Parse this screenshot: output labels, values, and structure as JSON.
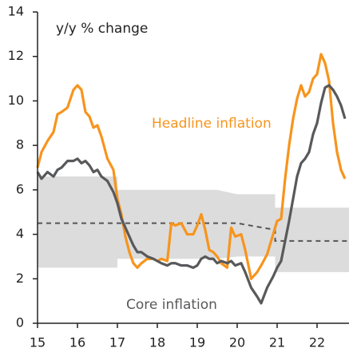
{
  "chart_data": {
    "type": "line",
    "ylabel": "y/y % change",
    "x": [
      2015.0,
      2015.1,
      2015.25,
      2015.4,
      2015.5,
      2015.6,
      2015.75,
      2015.9,
      2016.0,
      2016.1,
      2016.2,
      2016.3,
      2016.4,
      2016.5,
      2016.6,
      2016.75,
      2016.9,
      2017.0,
      2017.1,
      2017.2,
      2017.3,
      2017.4,
      2017.5,
      2017.6,
      2017.75,
      2017.9,
      2018.0,
      2018.1,
      2018.25,
      2018.35,
      2018.45,
      2018.6,
      2018.75,
      2018.9,
      2019.0,
      2019.1,
      2019.2,
      2019.3,
      2019.4,
      2019.5,
      2019.6,
      2019.75,
      2019.85,
      2019.95,
      2020.1,
      2020.2,
      2020.35,
      2020.5,
      2020.6,
      2020.75,
      2020.9,
      2021.0,
      2021.1,
      2021.2,
      2021.3,
      2021.4,
      2021.5,
      2021.6,
      2021.7,
      2021.8,
      2021.9,
      2022.0,
      2022.1,
      2022.2,
      2022.3,
      2022.4,
      2022.5,
      2022.6,
      2022.7
    ],
    "series": [
      {
        "name": "Headline inflation",
        "color": "#f7941d",
        "values": [
          7.0,
          7.7,
          8.2,
          8.6,
          9.4,
          9.5,
          9.7,
          10.5,
          10.7,
          10.5,
          9.5,
          9.3,
          8.8,
          8.9,
          8.4,
          7.4,
          6.9,
          5.6,
          4.9,
          3.9,
          3.2,
          2.7,
          2.5,
          2.7,
          2.9,
          2.9,
          2.8,
          2.9,
          2.8,
          4.5,
          4.4,
          4.5,
          4.0,
          4.0,
          4.4,
          4.9,
          4.2,
          3.3,
          3.2,
          3.0,
          2.7,
          2.5,
          4.3,
          3.9,
          4.0,
          3.3,
          2.0,
          2.3,
          2.6,
          3.1,
          4.0,
          4.6,
          4.7,
          6.5,
          8.0,
          9.2,
          10.1,
          10.7,
          10.2,
          10.4,
          11.0,
          11.2,
          12.1,
          11.7,
          10.9,
          9.0,
          7.7,
          6.9,
          6.5
        ]
      },
      {
        "name": "Core inflation",
        "color": "#58595b",
        "values": [
          6.8,
          6.5,
          6.8,
          6.6,
          6.9,
          7.0,
          7.3,
          7.3,
          7.4,
          7.2,
          7.3,
          7.1,
          6.8,
          6.9,
          6.6,
          6.4,
          5.9,
          5.4,
          4.7,
          4.3,
          3.9,
          3.5,
          3.2,
          3.2,
          3.0,
          2.9,
          2.8,
          2.7,
          2.6,
          2.7,
          2.7,
          2.6,
          2.6,
          2.5,
          2.6,
          2.9,
          3.0,
          2.9,
          2.9,
          2.7,
          2.8,
          2.7,
          2.8,
          2.6,
          2.7,
          2.3,
          1.6,
          1.2,
          0.9,
          1.6,
          2.1,
          2.5,
          2.8,
          3.7,
          4.6,
          5.6,
          6.6,
          7.2,
          7.4,
          7.7,
          8.5,
          9.0,
          9.9,
          10.6,
          10.7,
          10.5,
          10.2,
          9.8,
          9.2
        ]
      }
    ],
    "band": {
      "color": "#dcdcdc",
      "x": [
        2015,
        2017,
        2017,
        2019.5,
        2020,
        2020.95,
        2020.95,
        2022.8
      ],
      "upper": [
        6.6,
        6.6,
        6.0,
        6.0,
        5.8,
        5.8,
        5.2,
        5.2
      ],
      "lower": [
        2.5,
        2.5,
        2.9,
        2.9,
        3.0,
        3.0,
        2.3,
        2.3
      ]
    },
    "target": {
      "color": "#555555",
      "x": [
        2015,
        2020,
        2020.95,
        2020.95,
        2022.8
      ],
      "values": [
        4.5,
        4.5,
        4.2,
        3.7,
        3.7
      ]
    },
    "xlim": [
      2015,
      2022.8
    ],
    "xticks": [
      {
        "value": 2015,
        "label": "15"
      },
      {
        "value": 2016,
        "label": "16"
      },
      {
        "value": 2017,
        "label": "17"
      },
      {
        "value": 2018,
        "label": "18"
      },
      {
        "value": 2019,
        "label": "19"
      },
      {
        "value": 2020,
        "label": "20"
      },
      {
        "value": 2021,
        "label": "21"
      },
      {
        "value": 2022,
        "label": "22"
      }
    ],
    "ylim": [
      0,
      14
    ],
    "yticks": [
      0,
      2,
      4,
      6,
      8,
      10,
      12,
      14
    ]
  }
}
